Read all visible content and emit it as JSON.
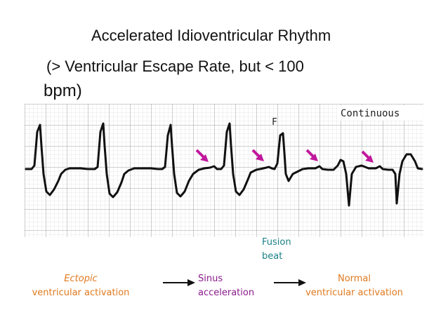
{
  "title": {
    "line1": "Accelerated Idioventricular Rhythm",
    "line2": "(> Ventricular Escape Rate, but < 100",
    "line3": "bpm)"
  },
  "strip": {
    "continuous_label": "Continuous",
    "f_label": "F"
  },
  "labels": {
    "fusion_beat_line1": "Fusion",
    "fusion_beat_line2": "beat",
    "ectopic_line1": "Ectopic",
    "ectopic_line2": "ventricular activation",
    "sinus_line1": "Sinus",
    "sinus_line2": "acceleration",
    "normal_line1": "Normal",
    "normal_line2": "ventricular activation"
  },
  "colors": {
    "orange": "#e07a1f",
    "purple": "#8a1c8a",
    "teal": "#1a7f86",
    "pointer": "#c0189c"
  }
}
